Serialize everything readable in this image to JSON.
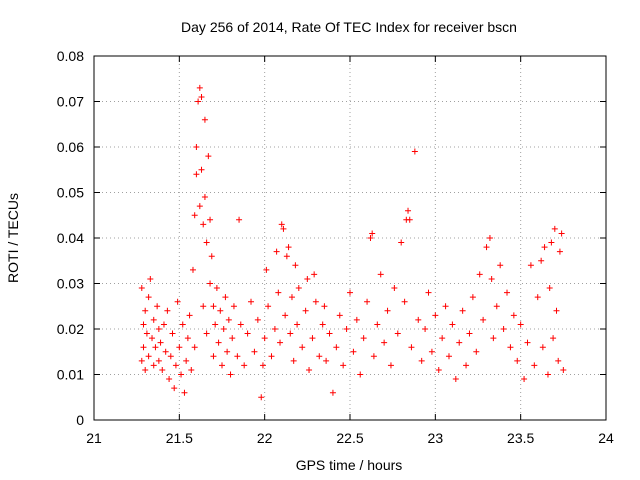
{
  "chart_data": {
    "type": "scatter",
    "title": "Day 256 of 2014, Rate Of TEC Index for receiver bscn",
    "xlabel": "GPS time / hours",
    "ylabel": "ROTI / TECUs",
    "xlim": [
      21,
      24
    ],
    "ylim": [
      0,
      0.08
    ],
    "xticks": [
      21,
      21.5,
      22,
      22.5,
      23,
      23.5,
      24
    ],
    "xtick_labels": [
      "21",
      "21.5",
      "22",
      "22.5",
      "23",
      "23.5",
      "24"
    ],
    "yticks": [
      0,
      0.01,
      0.02,
      0.03,
      0.04,
      0.05,
      0.06,
      0.07,
      0.08
    ],
    "ytick_labels": [
      "0",
      "0.01",
      "0.02",
      "0.03",
      "0.04",
      "0.05",
      "0.06",
      "0.07",
      "0.08"
    ],
    "grid": true,
    "marker": "+",
    "series": [
      {
        "name": "ROTI",
        "color": "#ff0000",
        "points": [
          [
            21.28,
            0.029
          ],
          [
            21.28,
            0.013
          ],
          [
            21.29,
            0.016
          ],
          [
            21.29,
            0.021
          ],
          [
            21.3,
            0.024
          ],
          [
            21.3,
            0.011
          ],
          [
            21.31,
            0.019
          ],
          [
            21.32,
            0.027
          ],
          [
            21.32,
            0.014
          ],
          [
            21.33,
            0.031
          ],
          [
            21.34,
            0.018
          ],
          [
            21.35,
            0.022
          ],
          [
            21.35,
            0.012
          ],
          [
            21.36,
            0.016
          ],
          [
            21.37,
            0.025
          ],
          [
            21.38,
            0.013
          ],
          [
            21.38,
            0.02
          ],
          [
            21.39,
            0.017
          ],
          [
            21.4,
            0.011
          ],
          [
            21.41,
            0.021
          ],
          [
            21.42,
            0.015
          ],
          [
            21.43,
            0.024
          ],
          [
            21.44,
            0.009
          ],
          [
            21.45,
            0.014
          ],
          [
            21.46,
            0.019
          ],
          [
            21.47,
            0.007
          ],
          [
            21.48,
            0.012
          ],
          [
            21.49,
            0.026
          ],
          [
            21.5,
            0.016
          ],
          [
            21.51,
            0.01
          ],
          [
            21.52,
            0.021
          ],
          [
            21.53,
            0.006
          ],
          [
            21.54,
            0.013
          ],
          [
            21.55,
            0.018
          ],
          [
            21.56,
            0.023
          ],
          [
            21.57,
            0.011
          ],
          [
            21.58,
            0.033
          ],
          [
            21.59,
            0.045
          ],
          [
            21.59,
            0.016
          ],
          [
            21.6,
            0.06
          ],
          [
            21.6,
            0.054
          ],
          [
            21.61,
            0.07
          ],
          [
            21.62,
            0.073
          ],
          [
            21.62,
            0.047
          ],
          [
            21.63,
            0.071
          ],
          [
            21.63,
            0.055
          ],
          [
            21.64,
            0.043
          ],
          [
            21.64,
            0.025
          ],
          [
            21.65,
            0.066
          ],
          [
            21.65,
            0.049
          ],
          [
            21.66,
            0.039
          ],
          [
            21.66,
            0.019
          ],
          [
            21.67,
            0.058
          ],
          [
            21.68,
            0.044
          ],
          [
            21.68,
            0.03
          ],
          [
            21.69,
            0.036
          ],
          [
            21.7,
            0.025
          ],
          [
            21.7,
            0.014
          ],
          [
            21.71,
            0.021
          ],
          [
            21.72,
            0.029
          ],
          [
            21.73,
            0.017
          ],
          [
            21.74,
            0.024
          ],
          [
            21.75,
            0.012
          ],
          [
            21.76,
            0.02
          ],
          [
            21.77,
            0.027
          ],
          [
            21.78,
            0.015
          ],
          [
            21.79,
            0.022
          ],
          [
            21.8,
            0.01
          ],
          [
            21.81,
            0.018
          ],
          [
            21.82,
            0.025
          ],
          [
            21.84,
            0.014
          ],
          [
            21.85,
            0.044
          ],
          [
            21.86,
            0.021
          ],
          [
            21.88,
            0.012
          ],
          [
            21.9,
            0.019
          ],
          [
            21.92,
            0.026
          ],
          [
            21.94,
            0.015
          ],
          [
            21.96,
            0.022
          ],
          [
            21.98,
            0.005
          ],
          [
            21.99,
            0.012
          ],
          [
            22.0,
            0.018
          ],
          [
            22.01,
            0.033
          ],
          [
            22.02,
            0.025
          ],
          [
            22.04,
            0.014
          ],
          [
            22.06,
            0.02
          ],
          [
            22.07,
            0.037
          ],
          [
            22.08,
            0.028
          ],
          [
            22.09,
            0.017
          ],
          [
            22.1,
            0.043
          ],
          [
            22.11,
            0.042
          ],
          [
            22.12,
            0.023
          ],
          [
            22.13,
            0.036
          ],
          [
            22.14,
            0.038
          ],
          [
            22.15,
            0.019
          ],
          [
            22.16,
            0.027
          ],
          [
            22.17,
            0.013
          ],
          [
            22.18,
            0.034
          ],
          [
            22.19,
            0.021
          ],
          [
            22.2,
            0.029
          ],
          [
            22.22,
            0.016
          ],
          [
            22.24,
            0.024
          ],
          [
            22.25,
            0.031
          ],
          [
            22.26,
            0.011
          ],
          [
            22.28,
            0.018
          ],
          [
            22.29,
            0.032
          ],
          [
            22.3,
            0.026
          ],
          [
            22.32,
            0.014
          ],
          [
            22.34,
            0.021
          ],
          [
            22.35,
            0.025
          ],
          [
            22.36,
            0.013
          ],
          [
            22.38,
            0.019
          ],
          [
            22.4,
            0.006
          ],
          [
            22.42,
            0.016
          ],
          [
            22.44,
            0.023
          ],
          [
            22.46,
            0.012
          ],
          [
            22.48,
            0.02
          ],
          [
            22.5,
            0.028
          ],
          [
            22.52,
            0.015
          ],
          [
            22.54,
            0.022
          ],
          [
            22.56,
            0.01
          ],
          [
            22.58,
            0.018
          ],
          [
            22.6,
            0.026
          ],
          [
            22.62,
            0.04
          ],
          [
            22.63,
            0.041
          ],
          [
            22.64,
            0.014
          ],
          [
            22.66,
            0.021
          ],
          [
            22.68,
            0.032
          ],
          [
            22.7,
            0.017
          ],
          [
            22.72,
            0.024
          ],
          [
            22.74,
            0.012
          ],
          [
            22.76,
            0.029
          ],
          [
            22.78,
            0.019
          ],
          [
            22.8,
            0.039
          ],
          [
            22.82,
            0.026
          ],
          [
            22.83,
            0.044
          ],
          [
            22.84,
            0.046
          ],
          [
            22.85,
            0.044
          ],
          [
            22.86,
            0.016
          ],
          [
            22.88,
            0.059
          ],
          [
            22.9,
            0.022
          ],
          [
            22.92,
            0.013
          ],
          [
            22.94,
            0.02
          ],
          [
            22.96,
            0.028
          ],
          [
            22.98,
            0.015
          ],
          [
            23.0,
            0.023
          ],
          [
            23.02,
            0.011
          ],
          [
            23.04,
            0.018
          ],
          [
            23.06,
            0.025
          ],
          [
            23.08,
            0.014
          ],
          [
            23.1,
            0.021
          ],
          [
            23.12,
            0.009
          ],
          [
            23.14,
            0.017
          ],
          [
            23.16,
            0.024
          ],
          [
            23.18,
            0.012
          ],
          [
            23.2,
            0.019
          ],
          [
            23.22,
            0.027
          ],
          [
            23.24,
            0.015
          ],
          [
            23.26,
            0.032
          ],
          [
            23.28,
            0.022
          ],
          [
            23.3,
            0.038
          ],
          [
            23.32,
            0.04
          ],
          [
            23.33,
            0.031
          ],
          [
            23.34,
            0.018
          ],
          [
            23.36,
            0.025
          ],
          [
            23.38,
            0.034
          ],
          [
            23.4,
            0.02
          ],
          [
            23.42,
            0.028
          ],
          [
            23.44,
            0.016
          ],
          [
            23.46,
            0.023
          ],
          [
            23.48,
            0.013
          ],
          [
            23.5,
            0.021
          ],
          [
            23.52,
            0.009
          ],
          [
            23.54,
            0.017
          ],
          [
            23.56,
            0.034
          ],
          [
            23.58,
            0.012
          ],
          [
            23.6,
            0.027
          ],
          [
            23.62,
            0.035
          ],
          [
            23.63,
            0.016
          ],
          [
            23.64,
            0.038
          ],
          [
            23.66,
            0.01
          ],
          [
            23.67,
            0.029
          ],
          [
            23.68,
            0.039
          ],
          [
            23.69,
            0.018
          ],
          [
            23.7,
            0.042
          ],
          [
            23.71,
            0.024
          ],
          [
            23.72,
            0.013
          ],
          [
            23.73,
            0.037
          ],
          [
            23.74,
            0.041
          ],
          [
            23.75,
            0.011
          ]
        ]
      }
    ]
  }
}
